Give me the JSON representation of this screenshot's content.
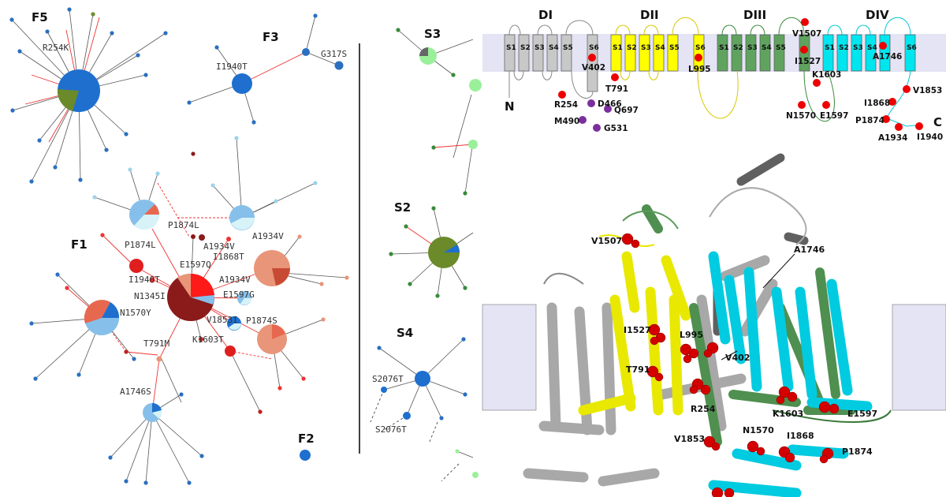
{
  "network": {
    "families": [
      {
        "id": "F5",
        "label": "F5"
      },
      {
        "id": "F3",
        "label": "F3"
      },
      {
        "id": "F1",
        "label": "F1"
      },
      {
        "id": "F2",
        "label": "F2"
      }
    ],
    "strains": [
      {
        "id": "S3",
        "label": "S3"
      },
      {
        "id": "S2",
        "label": "S2"
      },
      {
        "id": "S4",
        "label": "S4"
      }
    ],
    "labels": {
      "r254k": "R254K",
      "i1940t_f3": "I1940T",
      "g317s": "G317S",
      "p1874l_a": "P1874L",
      "p1874l_b": "P1874L",
      "a1934v_a": "A1934V",
      "a1934v_b": "A1934V",
      "a1934v_c": "A1934V",
      "i1868t": "I1868T",
      "e1597q": "E1597Q",
      "i1940t_f1": "I1940T",
      "n1345i": "N1345I",
      "e1597g": "E1597G",
      "n1570y": "N1570Y",
      "v1853i": "V1853I",
      "p1874s": "P1874S",
      "k1603t": "K1603T",
      "t791m": "T791M",
      "a1746s": "A1746S",
      "s2076t_a": "S2076T",
      "s2076t_b": "S2076T"
    }
  },
  "topology": {
    "domains": [
      "DI",
      "DII",
      "DIII",
      "DIV"
    ],
    "segments": [
      "S1",
      "S2",
      "S3",
      "S4",
      "S5",
      "S6"
    ],
    "termini": {
      "n": "N",
      "c": "C"
    },
    "mutations": {
      "v1507": "V1507",
      "v402": "V402",
      "i1527": "I1527",
      "a1746": "A1746",
      "t791": "T791",
      "l995": "L995",
      "k1603": "K1603",
      "v1853": "V1853",
      "r254": "R254",
      "d466": "D466",
      "q697": "Q697",
      "i1868": "I1868",
      "n1570": "N1570",
      "e1597": "E1597",
      "m490": "M490",
      "g531": "G531",
      "p1874": "P1874",
      "a1934": "A1934",
      "i1940": "I1940"
    },
    "colors": {
      "DI": "#c8c8c8",
      "DII": "#ffff00",
      "DIII": "#5fa35f",
      "DIV": "#00e5ee",
      "mutation": "#ee0000",
      "linker_mutation": "#7b2f9e"
    }
  },
  "structure": {
    "labels": {
      "v1507": "V1507",
      "a1746": "A1746",
      "i1527": "I1527",
      "l995": "L995",
      "v402": "V402",
      "t791": "T791",
      "r254": "R254",
      "k1603": "K1603",
      "e1597": "E1597",
      "v1853": "V1853",
      "n1570": "N1570",
      "i1868": "I1868",
      "p1874": "P1874"
    }
  }
}
